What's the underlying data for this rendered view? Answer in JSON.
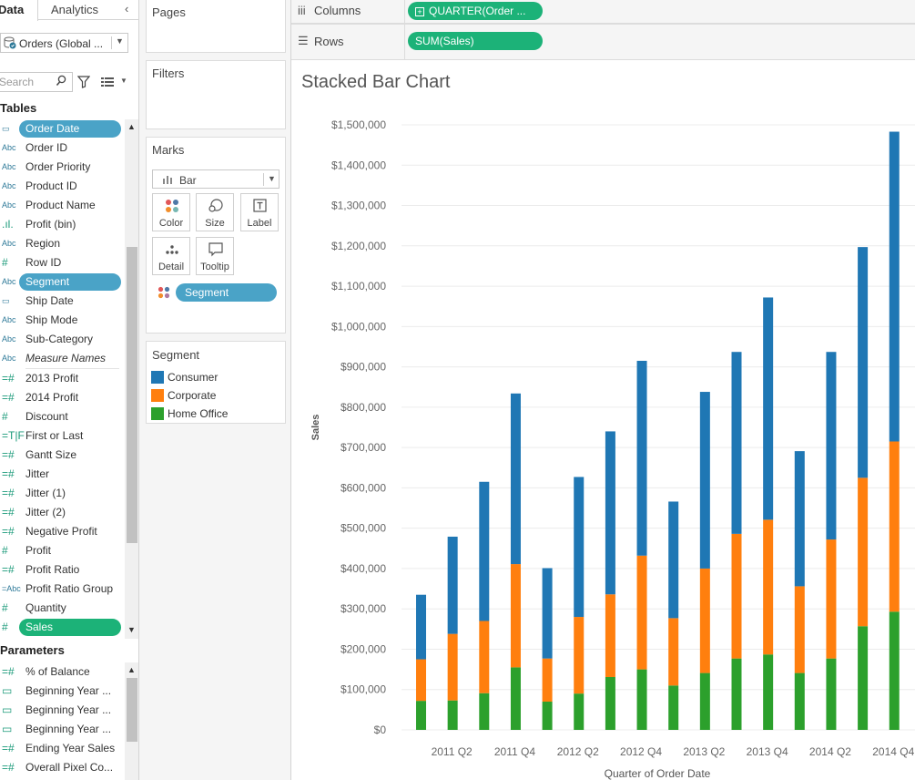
{
  "data_pane": {
    "tabs": {
      "data": "Data",
      "analytics": "Analytics",
      "collapse": "‹"
    },
    "datasource": {
      "label": "Orders (Global ..."
    },
    "search": {
      "placeholder": "Search"
    },
    "tables_title": "Tables",
    "parameters_title": "Parameters",
    "fields": [
      {
        "label": "Order Date",
        "icon": "calendar",
        "pill": "blue"
      },
      {
        "label": "Order ID",
        "icon": "abc"
      },
      {
        "label": "Order Priority",
        "icon": "abc"
      },
      {
        "label": "Product ID",
        "icon": "abc"
      },
      {
        "label": "Product Name",
        "icon": "abc"
      },
      {
        "label": "Profit (bin)",
        "icon": "bin"
      },
      {
        "label": "Region",
        "icon": "abc"
      },
      {
        "label": "Row ID",
        "icon": "hash"
      },
      {
        "label": "Segment",
        "icon": "abc",
        "pill": "blue"
      },
      {
        "label": "Ship Date",
        "icon": "calendar"
      },
      {
        "label": "Ship Mode",
        "icon": "abc"
      },
      {
        "label": "Sub-Category",
        "icon": "abc"
      },
      {
        "label": "Measure Names",
        "icon": "abc",
        "italic": true
      },
      {
        "label": "2013 Profit",
        "icon": "calc-hash",
        "divider_before": true
      },
      {
        "label": "2014 Profit",
        "icon": "calc-hash"
      },
      {
        "label": "Discount",
        "icon": "hash"
      },
      {
        "label": "First or Last",
        "icon": "calc-tf"
      },
      {
        "label": "Gantt Size",
        "icon": "calc-hash"
      },
      {
        "label": "Jitter",
        "icon": "calc-hash"
      },
      {
        "label": "Jitter (1)",
        "icon": "calc-hash"
      },
      {
        "label": "Jitter (2)",
        "icon": "calc-hash"
      },
      {
        "label": "Negative Profit",
        "icon": "calc-hash"
      },
      {
        "label": "Profit",
        "icon": "hash"
      },
      {
        "label": "Profit Ratio",
        "icon": "calc-hash"
      },
      {
        "label": "Profit Ratio Group",
        "icon": "calc-abc"
      },
      {
        "label": "Quantity",
        "icon": "hash"
      },
      {
        "label": "Sales",
        "icon": "hash",
        "pill": "green"
      }
    ],
    "parameters": [
      {
        "label": "% of Balance",
        "icon": "param-hash"
      },
      {
        "label": "Beginning Year ...",
        "icon": "param-cal"
      },
      {
        "label": "Beginning Year ...",
        "icon": "param-cal"
      },
      {
        "label": "Beginning Year ...",
        "icon": "param-cal"
      },
      {
        "label": "Ending Year Sales",
        "icon": "param-hash"
      },
      {
        "label": "Overall Pixel Co...",
        "icon": "param-hash"
      }
    ]
  },
  "shelves": {
    "pages_title": "Pages",
    "filters_title": "Filters",
    "marks_title": "Marks",
    "mark_type": "Bar",
    "mark_buttons": {
      "color": "Color",
      "size": "Size",
      "label": "Label",
      "detail": "Detail",
      "tooltip": "Tooltip"
    },
    "marks_field": "Segment",
    "legend_title": "Segment",
    "legend": [
      {
        "label": "Consumer",
        "color": "#1f77b4"
      },
      {
        "label": "Corporate",
        "color": "#ff7f0e"
      },
      {
        "label": "Home Office",
        "color": "#2ca02c"
      }
    ],
    "columns": {
      "label": "Columns",
      "pill": "QUARTER(Order ..."
    },
    "rows": {
      "label": "Rows",
      "pill": "SUM(Sales)"
    }
  },
  "viz": {
    "title": "Stacked Bar Chart"
  },
  "chart_data": {
    "type": "bar",
    "stacked": true,
    "title": "Stacked Bar Chart",
    "xlabel": "Quarter of Order Date",
    "ylabel": "Sales",
    "ylim": [
      0,
      1500000
    ],
    "y_ticks": [
      0,
      100000,
      200000,
      300000,
      400000,
      500000,
      600000,
      700000,
      800000,
      900000,
      1000000,
      1100000,
      1200000,
      1300000,
      1400000,
      1500000
    ],
    "y_tick_labels": [
      "$0",
      "$100,000",
      "$200,000",
      "$300,000",
      "$400,000",
      "$500,000",
      "$600,000",
      "$700,000",
      "$800,000",
      "$900,000",
      "$1,000,000",
      "$1,100,000",
      "$1,200,000",
      "$1,300,000",
      "$1,400,000",
      "$1,500,000"
    ],
    "categories": [
      "2011 Q1",
      "2011 Q2",
      "2011 Q3",
      "2011 Q4",
      "2012 Q1",
      "2012 Q2",
      "2012 Q3",
      "2012 Q4",
      "2013 Q1",
      "2013 Q2",
      "2013 Q3",
      "2013 Q4",
      "2014 Q1",
      "2014 Q2",
      "2014 Q3",
      "2014 Q4"
    ],
    "x_tick_labels": [
      "2011 Q2",
      "2011 Q4",
      "2012 Q2",
      "2012 Q4",
      "2013 Q2",
      "2013 Q4",
      "2014 Q2",
      "2014 Q4"
    ],
    "x_tick_indices": [
      1,
      3,
      5,
      7,
      9,
      11,
      13,
      15
    ],
    "series": [
      {
        "name": "Home Office",
        "color": "#2ca02c",
        "values": [
          72000,
          73000,
          91000,
          155000,
          70000,
          90000,
          131000,
          150000,
          110000,
          141000,
          177000,
          187000,
          141000,
          177000,
          257000,
          293000
        ]
      },
      {
        "name": "Corporate",
        "color": "#ff7f0e",
        "values": [
          103000,
          165000,
          179000,
          256000,
          107000,
          190000,
          205000,
          282000,
          167000,
          259000,
          309000,
          334000,
          215000,
          295000,
          368000,
          422000
        ]
      },
      {
        "name": "Consumer",
        "color": "#1f77b4",
        "values": [
          160000,
          241000,
          345000,
          423000,
          224000,
          347000,
          404000,
          483000,
          289000,
          438000,
          451000,
          551000,
          335000,
          465000,
          572000,
          768000
        ]
      }
    ],
    "grid": true,
    "legend": "left-panel"
  }
}
